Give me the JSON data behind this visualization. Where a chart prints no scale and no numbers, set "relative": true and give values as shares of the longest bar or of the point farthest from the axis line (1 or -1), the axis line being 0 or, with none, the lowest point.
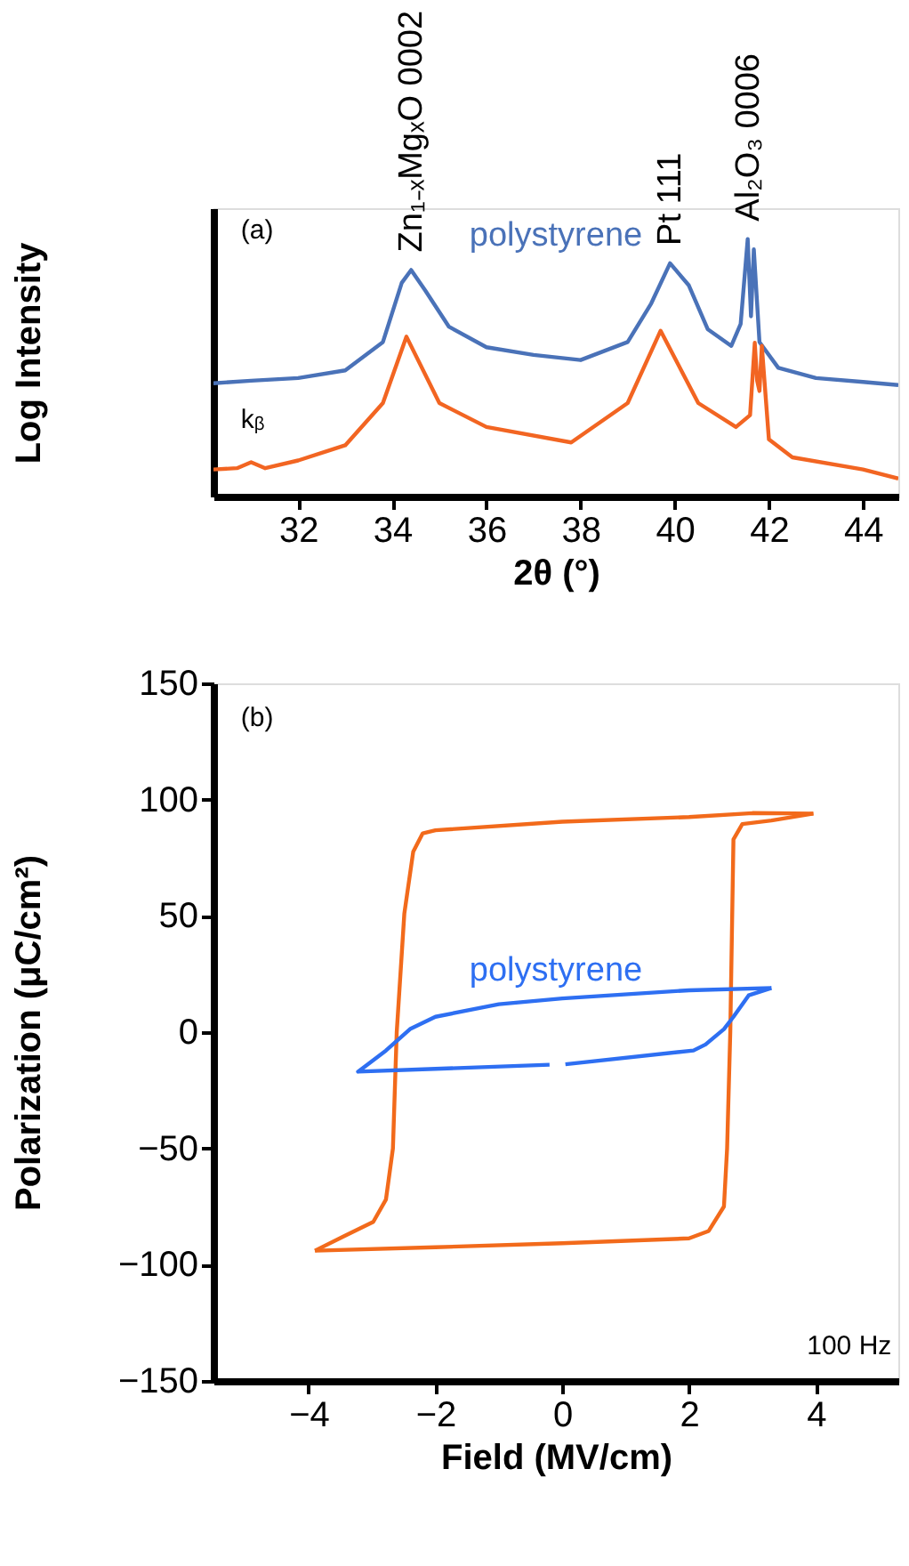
{
  "chart_data": [
    {
      "type": "line",
      "relative": true,
      "xlabel": "2θ (°)",
      "ylabel": "Log Intensity",
      "xlim": [
        30.2,
        44.75
      ],
      "xticks": [
        32,
        34,
        36,
        38,
        40,
        42,
        44
      ],
      "grid": false,
      "legend": false,
      "annotations": [
        "(a)",
        "kᵦ",
        {
          "text": "Zn₁₋ₓMgₓO 0002",
          "x": 34.4,
          "y": 0.88
        },
        {
          "text": "Pt 111",
          "x": 39.9,
          "y": 0.906
        },
        {
          "text": "Al₂O₃ 0006",
          "x": 41.55,
          "y": 1.0
        }
      ],
      "series": [
        {
          "name": "polystyrene",
          "color": "#4a72b8",
          "x": [
            30.2,
            31,
            32,
            33,
            33.8,
            34.2,
            34.4,
            34.7,
            35.2,
            36,
            37,
            38,
            39,
            39.5,
            39.9,
            40.3,
            40.7,
            41.2,
            41.4,
            41.55,
            41.62,
            41.68,
            41.8,
            42.2,
            43,
            44,
            44.75
          ],
          "values": [
            0.44,
            0.45,
            0.46,
            0.49,
            0.6,
            0.83,
            0.88,
            0.8,
            0.66,
            0.58,
            0.55,
            0.53,
            0.6,
            0.75,
            0.906,
            0.82,
            0.65,
            0.585,
            0.67,
            1.0,
            0.7,
            0.96,
            0.6,
            0.5,
            0.46,
            0.445,
            0.433
          ]
        },
        {
          "color": "#f26522",
          "x": [
            30.2,
            30.7,
            31.0,
            31.3,
            32,
            33,
            33.8,
            34.3,
            35,
            36,
            37.8,
            39,
            39.7,
            40.5,
            41.3,
            41.6,
            41.7,
            41.75,
            41.8,
            41.85,
            42,
            42.5,
            44,
            44.75
          ],
          "values": [
            0.105,
            0.11,
            0.133,
            0.11,
            0.14,
            0.199,
            0.363,
            0.621,
            0.363,
            0.27,
            0.21,
            0.363,
            0.644,
            0.363,
            0.27,
            0.316,
            0.597,
            0.45,
            0.41,
            0.585,
            0.222,
            0.152,
            0.105,
            0.07
          ]
        }
      ]
    },
    {
      "type": "line",
      "xlabel": "Field (MV/cm)",
      "ylabel": "Polarization (μC/cm²)",
      "xlim": [
        -5.5,
        5.3
      ],
      "xticks": [
        -4,
        -2,
        0,
        2,
        4
      ],
      "ylim": [
        -150,
        150
      ],
      "yticks": [
        -150,
        -100,
        -50,
        0,
        50,
        100,
        150
      ],
      "grid": false,
      "legend": false,
      "annotations": [
        "(b)",
        "100 Hz"
      ],
      "series": [
        {
          "color": "#f26a1b",
          "x": [
            -3.9,
            -2,
            0,
            2,
            2.31,
            2.55,
            2.6,
            2.65,
            2.7,
            2.84,
            3.3,
            3.96
          ],
          "values": [
            -94,
            -92.5,
            -90.8,
            -88.7,
            -85.5,
            -75,
            -50,
            0,
            82.9,
            89.5,
            91,
            94
          ]
        },
        {
          "color": "#f26a1b",
          "x": [
            3.96,
            3.0,
            2,
            0,
            -2.0,
            -2.2,
            -2.35,
            -2.49,
            -2.61,
            -2.67,
            -2.78,
            -2.98,
            -3.46,
            -3.9
          ],
          "values": [
            94,
            94.2,
            92.5,
            90.5,
            86.8,
            85.5,
            77.6,
            51,
            0,
            -50,
            -72,
            -81.6,
            -88,
            -94
          ]
        },
        {
          "name": "polystyrene",
          "color": "#2e6ff2",
          "x": [
            3.3,
            2,
            0,
            -1,
            -2.0,
            -2.4,
            -2.78,
            -3.22,
            -2,
            -0.2,
            -0.05,
            0.05,
            2.07,
            2.26,
            2.55,
            2.7,
            2.94,
            3.3
          ],
          "values": [
            19,
            18,
            14.5,
            12,
            6.6,
            1.3,
            -7.9,
            -17,
            -15.8,
            -14,
            null,
            -13.8,
            -7.9,
            -5.3,
            1.3,
            6.6,
            15.8,
            19
          ]
        }
      ]
    }
  ]
}
